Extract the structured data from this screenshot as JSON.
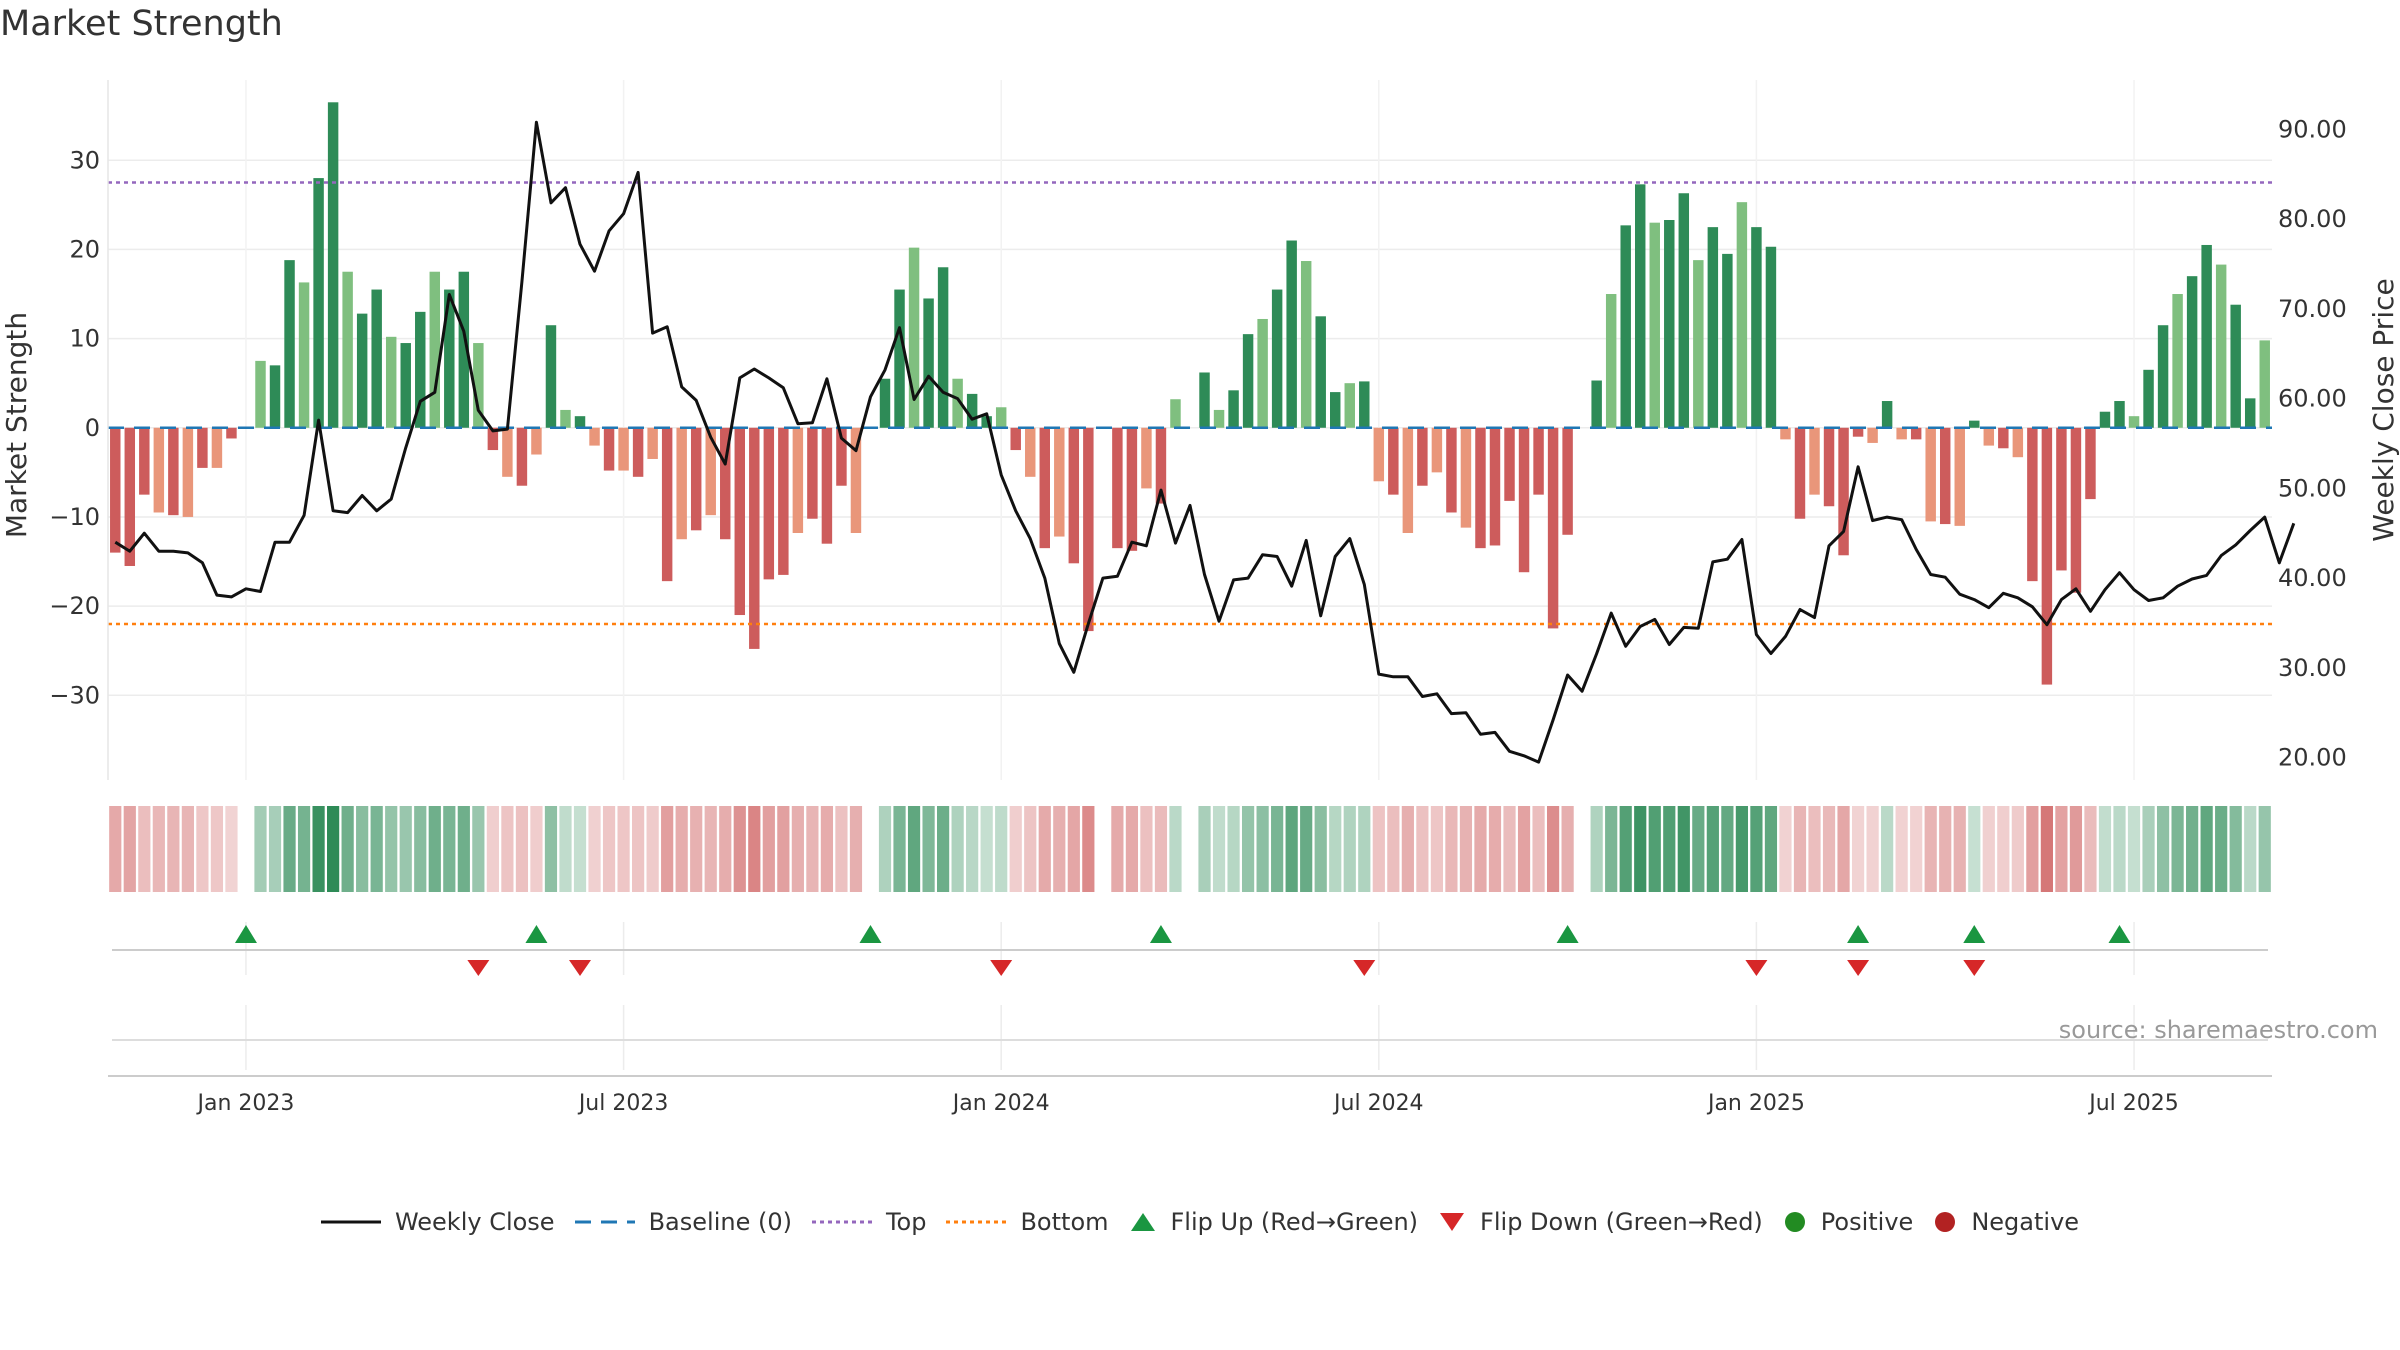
{
  "title": "Market Strength",
  "source": "source: sharemaestro.com",
  "colors": {
    "pos_strong": "#2e8b57",
    "pos_weak": "#7fbf7f",
    "neg_strong": "#cd5c5c",
    "neg_weak": "#e9967a",
    "price": "#111111",
    "baseline": "#1f77b4",
    "top": "#9467bd",
    "bottom": "#ff7f0e",
    "flip_up": "#1a9641",
    "flip_down": "#d62728",
    "positive": "#228b22",
    "negative": "#b22222"
  },
  "legend": {
    "weekly_close": "Weekly Close",
    "baseline": "Baseline (0)",
    "top": "Top",
    "bottom": "Bottom",
    "flip_up": "Flip Up (Red→Green)",
    "flip_down": "Flip Down (Green→Red)",
    "positive": "Positive",
    "negative": "Negative"
  },
  "chart_data": {
    "type": "bar+line",
    "left_axis_label": "Market Strength",
    "right_axis_label": "Weekly Close Price",
    "left_ylim": [
      -39.5,
      39
    ],
    "right_ylim": [
      17.5,
      95.5
    ],
    "left_ticks": [
      "30",
      "20",
      "10",
      "0",
      "−10",
      "−20",
      "−30"
    ],
    "left_tick_values": [
      30,
      20,
      10,
      0,
      -10,
      -20,
      -30
    ],
    "right_ticks": [
      "90.00",
      "80.00",
      "70.00",
      "60.00",
      "50.00",
      "40.00",
      "30.00",
      "20.00"
    ],
    "right_tick_values": [
      90,
      80,
      70,
      60,
      50,
      40,
      30,
      20
    ],
    "x_ticks": [
      "Jan 2023",
      "Jul 2023",
      "Jan 2024",
      "Jul 2024",
      "Jan 2025",
      "Jul 2025"
    ],
    "x_tick_weeks": [
      9,
      35,
      61,
      87,
      113,
      139
    ],
    "top_level": 27.5,
    "bottom_level": -22,
    "strength": [
      -14,
      -15.5,
      -7.5,
      -9.5,
      -9.8,
      -10,
      -4.5,
      -4.5,
      -1.2,
      0,
      7.5,
      7,
      18.8,
      16.3,
      28,
      36.5,
      17.5,
      12.8,
      15.5,
      10.2,
      9.5,
      13,
      17.5,
      15.5,
      17.5,
      9.5,
      -2.5,
      -5.5,
      -6.5,
      -3,
      11.5,
      2,
      1.3,
      -2,
      -4.8,
      -4.8,
      -5.5,
      -3.5,
      -17.2,
      -12.5,
      -11.5,
      -9.8,
      -12.5,
      -21,
      -24.8,
      -17,
      -16.5,
      -11.8,
      -10.2,
      -13,
      -6.5,
      -11.8,
      0,
      5.5,
      15.5,
      20.2,
      14.5,
      18,
      5.5,
      3.8,
      1.3,
      2.3,
      -2.5,
      -5.5,
      -13.5,
      -12.2,
      -15.2,
      -22.8,
      0,
      -13.5,
      -13.8,
      -6.8,
      -8.5,
      3.2,
      0,
      6.2,
      2,
      4.2,
      10.5,
      12.2,
      15.5,
      21,
      18.7,
      12.5,
      4,
      5,
      5.2,
      -6,
      -7.5,
      -11.8,
      -6.5,
      -5,
      -9.5,
      -11.2,
      -13.5,
      -13.2,
      -8.2,
      -16.2,
      -7.5,
      -22.5,
      -12,
      0,
      5.3,
      15,
      22.7,
      27.3,
      23,
      23.3,
      26.3,
      18.8,
      22.5,
      19.5,
      25.3,
      22.5,
      20.3,
      -1.3,
      -10.2,
      -7.5,
      -8.8,
      -14.3,
      -1,
      -1.7,
      3,
      -1.3,
      -1.3,
      -10.5,
      -10.8,
      -11,
      0.8,
      -2,
      -2.3,
      -3.3,
      -17.2,
      -28.8,
      -16,
      -18.5,
      -8,
      1.8,
      3,
      1.3,
      6.5,
      11.5,
      15,
      17,
      20.5,
      18.3,
      13.8,
      3.3,
      9.8
    ],
    "price": [
      44,
      43,
      45,
      43,
      43,
      42.8,
      41.7,
      38.1,
      37.9,
      38.8,
      38.5,
      44,
      44,
      47,
      57.6,
      47.5,
      47.3,
      49.2,
      47.5,
      48.8,
      54.5,
      59.7,
      60.7,
      71.6,
      67.5,
      58.7,
      56.4,
      56.6,
      73,
      90.8,
      81.8,
      83.5,
      77.2,
      74.2,
      78.7,
      80.6,
      85.2,
      67.3,
      68,
      61.3,
      59.8,
      55.7,
      52.7,
      62.3,
      63.3,
      62.3,
      61.2,
      57.2,
      57.3,
      62.2,
      55.6,
      54.2,
      60.2,
      63.2,
      67.9,
      59.9,
      62.5,
      60.7,
      60,
      57.7,
      58.3,
      51.5,
      47.5,
      44.4,
      40,
      32.7,
      29.5,
      34.9,
      40,
      40.2,
      44,
      43.6,
      49.8,
      43.9,
      48.1,
      40.4,
      35.2,
      39.8,
      40,
      42.6,
      42.4,
      39.1,
      44.2,
      35.8,
      42.4,
      44.4,
      39.3,
      29.3,
      29,
      29,
      26.8,
      27.1,
      24.9,
      25,
      22.6,
      22.8,
      20.7,
      20.2,
      19.5,
      24.2,
      29.2,
      27.4,
      31.6,
      36.1,
      32.4,
      34.6,
      35.4,
      32.6,
      34.5,
      34.4,
      41.8,
      42.1,
      44.3,
      33.7,
      31.6,
      33.5,
      36.5,
      35.6,
      43.6,
      45.2,
      52.4,
      46.4,
      46.8,
      46.5,
      43.2,
      40.4,
      40.1,
      38.2,
      37.6,
      36.7,
      38.3,
      37.8,
      36.8,
      34.8,
      37.6,
      38.8,
      36.3,
      38.7,
      40.6,
      38.7,
      37.5,
      37.8,
      39.1,
      39.9,
      40.3,
      42.5,
      43.7,
      45.3,
      46.8,
      41.7,
      46.1
    ],
    "flip_up_weeks": [
      9,
      29,
      52,
      72,
      100,
      120,
      128,
      138
    ],
    "flip_down_weeks": [
      25,
      32,
      61,
      86,
      113,
      120,
      128
    ]
  }
}
